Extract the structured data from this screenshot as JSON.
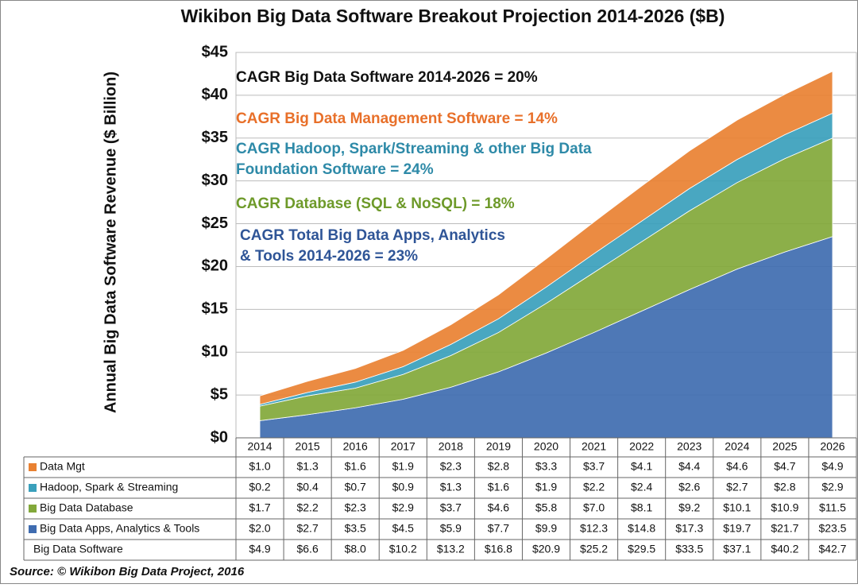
{
  "chart_data": {
    "type": "stacked-area",
    "title": "Wikibon Big Data Software Breakout Projection 2014-2026 ($B)",
    "y_label": "Annual Big Data Software Revenue ($ Billion)",
    "source": "Source: © Wikibon Big Data Project, 2016",
    "categories": [
      "2014",
      "2015",
      "2016",
      "2017",
      "2018",
      "2019",
      "2020",
      "2021",
      "2022",
      "2023",
      "2024",
      "2025",
      "2026"
    ],
    "ylim": [
      0,
      45
    ],
    "yticks": [
      {
        "value": 0,
        "label": "$0"
      },
      {
        "value": 5,
        "label": "$5"
      },
      {
        "value": 10,
        "label": "$10"
      },
      {
        "value": 15,
        "label": "$15"
      },
      {
        "value": 20,
        "label": "$20"
      },
      {
        "value": 25,
        "label": "$25"
      },
      {
        "value": 30,
        "label": "$30"
      },
      {
        "value": 35,
        "label": "$35"
      },
      {
        "value": 40,
        "label": "$40"
      },
      {
        "value": 45,
        "label": "$45"
      }
    ],
    "grid": true,
    "series": [
      {
        "name": "Big Data Apps, Analytics & Tools",
        "color": "#3f6cb0",
        "values": [
          2.0,
          2.7,
          3.5,
          4.5,
          5.9,
          7.7,
          9.9,
          12.3,
          14.8,
          17.3,
          19.7,
          21.7,
          23.5
        ],
        "value_labels": [
          "$2.0",
          "$2.7",
          "$3.5",
          "$4.5",
          "$5.9",
          "$7.7",
          "$9.9",
          "$12.3",
          "$14.8",
          "$17.3",
          "$19.7",
          "$21.7",
          "$23.5"
        ]
      },
      {
        "name": "Big Data Database",
        "color": "#82a83a",
        "values": [
          1.7,
          2.2,
          2.3,
          2.9,
          3.7,
          4.6,
          5.8,
          7.0,
          8.1,
          9.2,
          10.1,
          10.9,
          11.5
        ],
        "value_labels": [
          "$1.7",
          "$2.2",
          "$2.3",
          "$2.9",
          "$3.7",
          "$4.6",
          "$5.8",
          "$7.0",
          "$8.1",
          "$9.2",
          "$10.1",
          "$10.9",
          "$11.5"
        ]
      },
      {
        "name": "Hadoop, Spark & Streaming",
        "color": "#3aa0bc",
        "values": [
          0.2,
          0.4,
          0.7,
          0.9,
          1.3,
          1.6,
          1.9,
          2.2,
          2.4,
          2.6,
          2.7,
          2.8,
          2.9
        ],
        "value_labels": [
          "$0.2",
          "$0.4",
          "$0.7",
          "$0.9",
          "$1.3",
          "$1.6",
          "$1.9",
          "$2.2",
          "$2.4",
          "$2.6",
          "$2.7",
          "$2.8",
          "$2.9"
        ]
      },
      {
        "name": "Data Mgt",
        "color": "#e98132",
        "values": [
          1.0,
          1.3,
          1.6,
          1.9,
          2.3,
          2.8,
          3.3,
          3.7,
          4.1,
          4.4,
          4.6,
          4.7,
          4.9
        ],
        "value_labels": [
          "$1.0",
          "$1.3",
          "$1.6",
          "$1.9",
          "$2.3",
          "$2.8",
          "$3.3",
          "$3.7",
          "$4.1",
          "$4.4",
          "$4.6",
          "$4.7",
          "$4.9"
        ]
      }
    ],
    "total": {
      "name": "Big Data Software",
      "values": [
        4.9,
        6.6,
        8.0,
        10.2,
        13.2,
        16.8,
        20.9,
        25.2,
        29.5,
        33.5,
        37.1,
        40.2,
        42.7
      ],
      "value_labels": [
        "$4.9",
        "$6.6",
        "$8.0",
        "$10.2",
        "$13.2",
        "$16.8",
        "$20.9",
        "$25.2",
        "$29.5",
        "$33.5",
        "$37.1",
        "$40.2",
        "$42.7"
      ]
    },
    "annotations": [
      {
        "lines": [
          "CAGR Big Data Software 2014-2026 = 20%"
        ],
        "color": "#111111"
      },
      {
        "lines": [
          "CAGR Big Data Management Software = 14%"
        ],
        "color": "#e8702a"
      },
      {
        "lines": [
          "CAGR Hadoop, Spark/Streaming & other Big Data",
          "Foundation Software = 24%"
        ],
        "color": "#2e8aa8"
      },
      {
        "lines": [
          "CAGR Database (SQL & NoSQL) = 18%"
        ],
        "color": "#6e9a2a"
      },
      {
        "lines": [
          "CAGR Total Big Data Apps, Analytics",
          "& Tools 2014-2026 = 23%"
        ],
        "color": "#2f5597"
      }
    ]
  }
}
